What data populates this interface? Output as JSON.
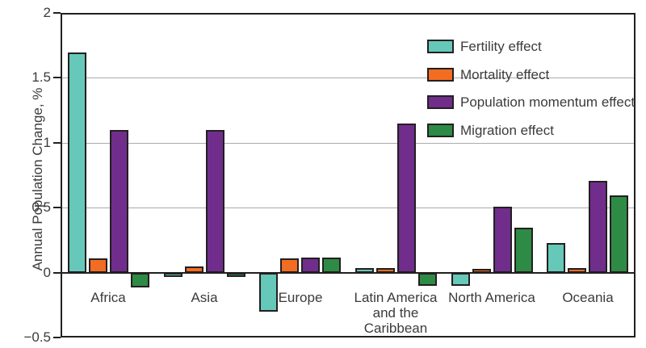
{
  "chart_data": {
    "type": "bar",
    "title": "",
    "xlabel": "",
    "ylabel": "Annual Population Change, %",
    "categories": [
      "Africa",
      "Asia",
      "Europe",
      "Latin America\nand the\nCaribbean",
      "North America",
      "Oceania"
    ],
    "series": [
      {
        "name": "Fertility effect",
        "color": "#66c8b9",
        "values": [
          1.7,
          -0.02,
          -0.3,
          0.04,
          -0.1,
          0.23
        ]
      },
      {
        "name": "Mortality effect",
        "color": "#f26c21",
        "values": [
          0.11,
          0.05,
          0.11,
          0.04,
          0.03,
          0.04
        ]
      },
      {
        "name": "Population momentum effect",
        "color": "#702d8c",
        "values": [
          1.1,
          1.1,
          0.12,
          1.15,
          0.51,
          0.71
        ]
      },
      {
        "name": "Migration effect",
        "color": "#2e8b45",
        "values": [
          -0.11,
          -0.02,
          0.12,
          -0.1,
          0.35,
          0.6
        ]
      }
    ],
    "ylim": [
      -0.5,
      2
    ],
    "yticks": [
      2,
      1.5,
      1,
      0.5,
      0,
      -0.5
    ],
    "ytick_labels": [
      "2",
      "1.5",
      "1",
      "0.5",
      "0",
      "−0.5"
    ],
    "grid": true,
    "legend_position": "top-right",
    "colors": {
      "frame": "#231f20",
      "gridline": "#ababab",
      "text": "#3b3b3b",
      "background": "#ffffff"
    }
  }
}
